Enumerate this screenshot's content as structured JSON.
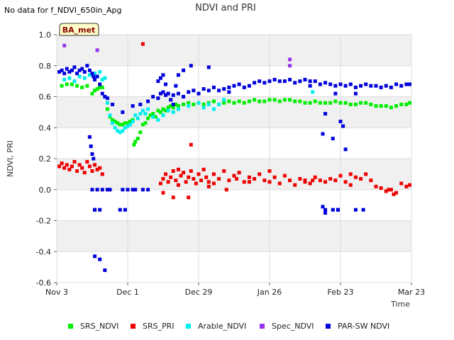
{
  "chart_data": {
    "type": "scatter",
    "title": "NDVI and PRI",
    "note": "No data for f_NDVI_650in_Apg",
    "badge": "BA_met",
    "xlabel": "Time",
    "ylabel": "NDVI, PRI",
    "xlim": [
      0,
      140
    ],
    "ylim": [
      -0.6,
      1.0
    ],
    "x_unit": "days since Nov 3",
    "x_ticks": [
      {
        "value": 0,
        "label": "Nov 3"
      },
      {
        "value": 28,
        "label": "Dec 1"
      },
      {
        "value": 56,
        "label": "Dec 29"
      },
      {
        "value": 84,
        "label": "Jan 26"
      },
      {
        "value": 112,
        "label": "Feb 23"
      },
      {
        "value": 140,
        "label": "Mar 23"
      }
    ],
    "y_ticks": [
      {
        "value": 1.0,
        "label": "1.0"
      },
      {
        "value": 0.8,
        "label": "0.8"
      },
      {
        "value": 0.6,
        "label": "0.6"
      },
      {
        "value": 0.4,
        "label": "0.4"
      },
      {
        "value": 0.2,
        "label": "0.2"
      },
      {
        "value": 0.0,
        "label": "0.0"
      },
      {
        "value": -0.2,
        "label": "-0.2"
      },
      {
        "value": -0.4,
        "label": "-0.4"
      },
      {
        "value": -0.6,
        "label": "-0.6"
      }
    ],
    "grid": true,
    "legend_position": "bottom",
    "series": [
      {
        "name": "SRS_NDVI",
        "color": "#00ee00",
        "x": [
          2,
          4,
          6,
          8,
          10,
          12,
          14,
          15,
          16,
          17,
          18,
          19,
          20,
          21,
          22,
          23,
          24,
          25,
          26,
          27,
          28,
          29,
          30,
          30.5,
          31,
          32,
          33,
          34,
          35,
          36,
          37,
          38,
          39,
          40,
          41,
          42,
          43,
          44,
          45,
          46,
          47,
          48,
          50,
          52,
          54,
          56,
          58,
          60,
          62,
          64,
          66,
          68,
          70,
          72,
          74,
          76,
          78,
          80,
          82,
          84,
          86,
          88,
          90,
          92,
          94,
          96,
          98,
          100,
          102,
          104,
          106,
          108,
          110,
          112,
          114,
          116,
          118,
          120,
          122,
          124,
          126,
          128,
          130,
          132,
          134,
          136,
          138,
          140
        ],
        "y": [
          0.67,
          0.68,
          0.68,
          0.67,
          0.66,
          0.67,
          0.62,
          0.64,
          0.65,
          0.66,
          0.66,
          0.6,
          0.52,
          0.47,
          0.45,
          0.44,
          0.43,
          0.42,
          0.42,
          0.43,
          0.43,
          0.44,
          0.45,
          0.29,
          0.31,
          0.33,
          0.37,
          0.42,
          0.43,
          0.46,
          0.48,
          0.49,
          0.47,
          0.51,
          0.5,
          0.52,
          0.51,
          0.53,
          0.54,
          0.53,
          0.55,
          0.54,
          0.55,
          0.56,
          0.55,
          0.56,
          0.55,
          0.56,
          0.57,
          0.55,
          0.56,
          0.57,
          0.56,
          0.57,
          0.56,
          0.57,
          0.58,
          0.57,
          0.57,
          0.58,
          0.58,
          0.57,
          0.58,
          0.58,
          0.57,
          0.57,
          0.56,
          0.56,
          0.57,
          0.56,
          0.56,
          0.56,
          0.57,
          0.56,
          0.56,
          0.55,
          0.55,
          0.56,
          0.56,
          0.55,
          0.54,
          0.54,
          0.54,
          0.53,
          0.54,
          0.55,
          0.55,
          0.56
        ]
      },
      {
        "name": "SRS_PRI",
        "color": "#ee0000",
        "x": [
          1,
          2,
          3,
          4,
          5,
          6,
          7,
          8,
          9,
          10,
          11,
          12,
          13,
          14,
          15,
          16,
          17,
          18,
          41,
          42,
          43,
          44,
          45,
          46,
          47,
          48,
          49,
          50,
          51,
          52,
          53,
          54,
          55,
          56,
          57,
          58,
          59,
          60,
          62,
          64,
          66,
          68,
          70,
          72,
          74,
          76,
          78,
          80,
          82,
          84,
          86,
          88,
          90,
          92,
          94,
          96,
          98,
          100,
          102,
          104,
          106,
          108,
          110,
          112,
          114,
          116,
          118,
          120,
          122,
          124,
          126,
          128,
          130,
          132,
          134,
          136,
          138,
          140,
          42,
          46,
          48,
          52,
          60,
          62,
          67,
          71,
          76,
          84,
          98,
          101,
          116,
          131,
          133,
          34,
          53
        ],
        "y": [
          0.15,
          0.17,
          0.14,
          0.16,
          0.13,
          0.15,
          0.18,
          0.12,
          0.16,
          0.14,
          0.11,
          0.18,
          0.15,
          0.12,
          0.16,
          0.13,
          0.14,
          0.1,
          0.04,
          0.07,
          0.1,
          0.05,
          0.08,
          0.12,
          0.06,
          0.03,
          0.09,
          0.11,
          0.05,
          0.08,
          0.12,
          0.07,
          0.04,
          0.1,
          0.06,
          0.13,
          0.08,
          0.05,
          0.1,
          0.07,
          0.12,
          0.06,
          0.09,
          0.11,
          0.05,
          0.08,
          0.07,
          0.1,
          0.06,
          0.05,
          0.08,
          0.04,
          0.09,
          0.06,
          0.03,
          0.07,
          0.05,
          0.04,
          0.08,
          0.06,
          0.05,
          0.07,
          0.06,
          0.09,
          0.05,
          0.1,
          0.08,
          0.07,
          0.1,
          0.06,
          0.02,
          0.01,
          -0.01,
          0.0,
          -0.02,
          0.04,
          0.02,
          0.03,
          -0.02,
          -0.05,
          0.13,
          -0.05,
          0.02,
          0.04,
          0.0,
          0.07,
          0.05,
          0.12,
          0.06,
          0.06,
          0.03,
          0.0,
          -0.03,
          0.94,
          0.29
        ]
      },
      {
        "name": "Arable_NDVI",
        "color": "#00eeee",
        "x": [
          3,
          5,
          7,
          9,
          11,
          13,
          15,
          16,
          17,
          18,
          19,
          20,
          21,
          22,
          23,
          24,
          25,
          26,
          27,
          28,
          29,
          30,
          31,
          32,
          33,
          34,
          35,
          36,
          38,
          40,
          42,
          44,
          46,
          48,
          52,
          56,
          58,
          60,
          62,
          64,
          66,
          98,
          101
        ],
        "y": [
          0.71,
          0.72,
          0.7,
          0.73,
          0.72,
          0.74,
          0.75,
          0.73,
          0.76,
          0.71,
          0.72,
          0.56,
          0.48,
          0.43,
          0.4,
          0.38,
          0.37,
          0.38,
          0.4,
          0.41,
          0.42,
          0.44,
          0.48,
          0.46,
          0.49,
          0.51,
          0.49,
          0.52,
          0.47,
          0.45,
          0.48,
          0.51,
          0.5,
          0.52,
          0.54,
          0.56,
          0.53,
          0.55,
          0.52,
          0.55,
          0.58,
          0.71,
          0.63
        ]
      },
      {
        "name": "Spec_NDVI",
        "color": "#9933ee",
        "x": [
          3,
          16,
          92,
          92
        ],
        "y": [
          0.93,
          0.9,
          0.84,
          0.8
        ]
      },
      {
        "name": "PAR-SW NDVI",
        "color": "#0000dd",
        "x": [
          1,
          2,
          3,
          4,
          5,
          6,
          7,
          8,
          9,
          10,
          11,
          12,
          13,
          14,
          14.5,
          15,
          16,
          17,
          18,
          19,
          20,
          22,
          26,
          30,
          33,
          36,
          38,
          40,
          41,
          42,
          43,
          44,
          46,
          48,
          50,
          52,
          54,
          56,
          58,
          60,
          62,
          64,
          66,
          68,
          70,
          72,
          74,
          76,
          78,
          80,
          82,
          84,
          86,
          88,
          90,
          92,
          94,
          96,
          98,
          100,
          102,
          104,
          106,
          108,
          110,
          112,
          114,
          116,
          118,
          120,
          122,
          124,
          126,
          128,
          130,
          132,
          134,
          136,
          138,
          140,
          13,
          13.5,
          14,
          14.5,
          14,
          15,
          15,
          16,
          17,
          18,
          20,
          25,
          27,
          30,
          15,
          17,
          19,
          21,
          26,
          28,
          31,
          34,
          36,
          40,
          41,
          42,
          43,
          44,
          45,
          46,
          47,
          48,
          50,
          53,
          60,
          68,
          100,
          110,
          106,
          112,
          113,
          105,
          109,
          114,
          118,
          121,
          111,
          105,
          106,
          111,
          106,
          109,
          111,
          118
        ],
        "y": [
          0.76,
          0.77,
          0.75,
          0.78,
          0.76,
          0.77,
          0.79,
          0.75,
          0.77,
          0.78,
          0.76,
          0.8,
          0.77,
          0.75,
          0.73,
          0.71,
          0.73,
          0.68,
          0.62,
          0.6,
          0.59,
          0.55,
          0.5,
          0.54,
          0.55,
          0.57,
          0.6,
          0.59,
          0.62,
          0.63,
          0.61,
          0.62,
          0.61,
          0.62,
          0.6,
          0.63,
          0.64,
          0.62,
          0.65,
          0.64,
          0.66,
          0.64,
          0.65,
          0.66,
          0.67,
          0.68,
          0.66,
          0.67,
          0.69,
          0.7,
          0.69,
          0.7,
          0.71,
          0.7,
          0.7,
          0.71,
          0.69,
          0.7,
          0.71,
          0.7,
          0.7,
          0.68,
          0.69,
          0.68,
          0.67,
          0.68,
          0.67,
          0.68,
          0.66,
          0.67,
          0.68,
          0.67,
          0.67,
          0.66,
          0.67,
          0.66,
          0.68,
          0.67,
          0.68,
          0.68,
          0.34,
          0.28,
          0.23,
          0.2,
          0.0,
          -0.13,
          -0.13,
          0.0,
          -0.13,
          0.0,
          0.0,
          -0.13,
          -0.13,
          0.0,
          -0.43,
          -0.45,
          -0.52,
          0.0,
          0.0,
          0.0,
          0.0,
          0.0,
          0.0,
          0.7,
          0.72,
          0.74,
          0.68,
          0.62,
          0.58,
          0.55,
          0.67,
          0.74,
          0.77,
          0.8,
          0.79,
          0.63,
          0.67,
          0.62,
          0.49,
          0.44,
          0.41,
          0.36,
          0.33,
          0.26,
          0.62,
          -0.13,
          -0.13,
          -0.11,
          -0.13,
          -0.13,
          -0.15,
          -0.13,
          -0.13,
          -0.13
        ]
      }
    ]
  }
}
